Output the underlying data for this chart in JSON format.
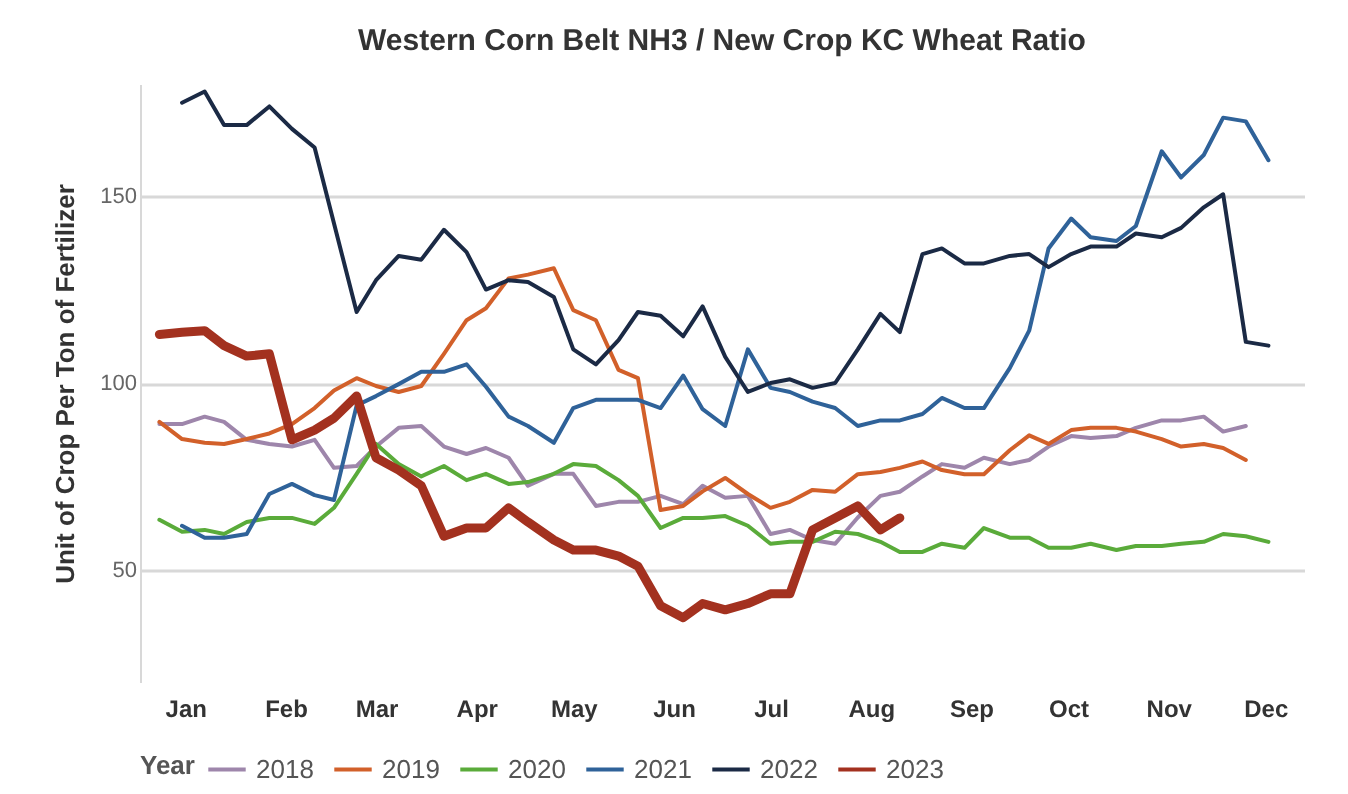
{
  "chart_data": {
    "type": "line",
    "title": "Western Corn Belt NH3 / New Crop KC Wheat Ratio",
    "ylabel": "Unit of Crop Per Ton of Fertilizer",
    "legend_title": "Year",
    "legend": "bottom",
    "grid": "y",
    "line_style": "solid",
    "xlim": [
      "--01-01",
      "--12-27"
    ],
    "ylim": [
      20,
      180
    ],
    "yticks": [
      50,
      100,
      150
    ],
    "xticks": [
      {
        "value": "--01-15",
        "label": "Jan"
      },
      {
        "value": "--02-15",
        "label": "Feb"
      },
      {
        "value": "--03-15",
        "label": "Mar"
      },
      {
        "value": "--04-15",
        "label": "Apr"
      },
      {
        "value": "--05-15",
        "label": "May"
      },
      {
        "value": "--06-15",
        "label": "Jun"
      },
      {
        "value": "--07-15",
        "label": "Jul"
      },
      {
        "value": "--08-15",
        "label": "Aug"
      },
      {
        "value": "--09-15",
        "label": "Sep"
      },
      {
        "value": "--10-15",
        "label": "Oct"
      },
      {
        "value": "--11-15",
        "label": "Nov"
      },
      {
        "value": "--12-15",
        "label": "Dec"
      }
    ],
    "x": [
      "--01-07",
      "--01-14",
      "--01-21",
      "--01-27",
      "--02-03",
      "--02-10",
      "--02-17",
      "--02-24",
      "--03-02",
      "--03-09",
      "--03-15",
      "--03-22",
      "--03-29",
      "--04-05",
      "--04-12",
      "--04-18",
      "--04-25",
      "--05-01",
      "--05-09",
      "--05-15",
      "--05-22",
      "--05-29",
      "--06-04",
      "--06-11",
      "--06-18",
      "--06-24",
      "--07-01",
      "--07-08",
      "--07-15",
      "--07-21",
      "--07-28",
      "--08-04",
      "--08-11",
      "--08-18",
      "--08-24",
      "--08-31",
      "--09-06",
      "--09-13",
      "--09-19",
      "--09-27",
      "--10-03",
      "--10-09",
      "--10-16",
      "--10-22",
      "--10-30",
      "--11-05",
      "--11-13",
      "--11-19",
      "--11-26",
      "--12-02",
      "--12-09",
      "--12-16"
    ],
    "series": [
      {
        "name": "2018",
        "color": "#9e86ab",
        "x": [
          "--01-07",
          "--01-14",
          "--01-21",
          "--01-27",
          "--02-03",
          "--02-10",
          "--02-17",
          "--02-24",
          "--03-02",
          "--03-09",
          "--03-15",
          "--03-22",
          "--03-29",
          "--04-05",
          "--04-12",
          "--04-18",
          "--04-25",
          "--05-01",
          "--05-09",
          "--05-15",
          "--05-22",
          "--05-29",
          "--06-04",
          "--06-11",
          "--06-18",
          "--06-24",
          "--07-01",
          "--07-08",
          "--07-15",
          "--07-21",
          "--07-28",
          "--08-04",
          "--08-11",
          "--08-18",
          "--08-24",
          "--08-31",
          "--09-06",
          "--09-13",
          "--09-19",
          "--09-27",
          "--10-03",
          "--10-09",
          "--10-16",
          "--10-22",
          "--10-30",
          "--11-05",
          "--11-13",
          "--11-19",
          "--11-26",
          "--12-02",
          "--12-09"
        ],
        "values": [
          89,
          89,
          91,
          89.6,
          84.8,
          83.7,
          83,
          84.8,
          77.3,
          77.8,
          83,
          88,
          88.5,
          83,
          81,
          82.6,
          80,
          72.5,
          75.7,
          75.7,
          67.1,
          68.2,
          68.2,
          69.8,
          67.6,
          72.5,
          69.3,
          69.8,
          59.6,
          60.7,
          58,
          57,
          64,
          69.8,
          70.9,
          75,
          78.3,
          77.3,
          80,
          78.3,
          79.4,
          83,
          85.8,
          85.3,
          85.8,
          88,
          90,
          90,
          91,
          87,
          88.5
        ]
      },
      {
        "name": "2019",
        "color": "#d2602a",
        "x": [
          "--01-07",
          "--01-14",
          "--01-21",
          "--01-27",
          "--02-03",
          "--02-10",
          "--02-17",
          "--02-24",
          "--03-02",
          "--03-09",
          "--03-15",
          "--03-22",
          "--03-29",
          "--04-05",
          "--04-12",
          "--04-18",
          "--04-25",
          "--05-01",
          "--05-09",
          "--05-15",
          "--05-22",
          "--05-29",
          "--06-04",
          "--06-11",
          "--06-18",
          "--06-24",
          "--07-01",
          "--07-08",
          "--07-15",
          "--07-21",
          "--07-28",
          "--08-04",
          "--08-11",
          "--08-18",
          "--08-24",
          "--08-31",
          "--09-06",
          "--09-13",
          "--09-19",
          "--09-27",
          "--10-03",
          "--10-09",
          "--10-16",
          "--10-22",
          "--10-30",
          "--11-05",
          "--11-13",
          "--11-19",
          "--11-26",
          "--12-02",
          "--12-09"
        ],
        "values": [
          89.6,
          85,
          84,
          83.7,
          85,
          86.5,
          89,
          93.3,
          98,
          101.3,
          99.2,
          97.6,
          99.2,
          107.8,
          116.8,
          120,
          128,
          129,
          130.7,
          119.5,
          116.8,
          103.5,
          101.3,
          66,
          67.1,
          71,
          74.6,
          70.3,
          66.6,
          68.2,
          71.4,
          70.9,
          75.6,
          76.2,
          77.3,
          79,
          76.7,
          75.6,
          75.6,
          82,
          86,
          83.7,
          87.4,
          88,
          88,
          87,
          85,
          83,
          83.7,
          82.6,
          79.4
        ]
      },
      {
        "name": "2020",
        "color": "#5aab3a",
        "values": [
          63.4,
          60.2,
          60.7,
          59.6,
          62.8,
          63.9,
          63.9,
          62.3,
          66.6,
          75.7,
          83.7,
          78.3,
          75,
          77.8,
          74,
          75.7,
          73,
          73.5,
          75.7,
          78.3,
          77.8,
          74,
          69.8,
          61.2,
          63.9,
          63.9,
          64.4,
          61.8,
          57,
          57.5,
          57.5,
          60.2,
          59.6,
          57.5,
          54.8,
          54.8,
          57,
          55.9,
          61.2,
          58.6,
          58.6,
          55.9,
          55.9,
          57,
          55.3,
          56.4,
          56.4,
          57,
          57.5,
          59.6,
          59,
          57.5
        ]
      },
      {
        "name": "2021",
        "color": "#2f6299",
        "x": [
          "--01-14",
          "--01-21",
          "--01-27",
          "--02-03",
          "--02-10",
          "--02-17",
          "--02-24",
          "--03-02",
          "--03-09",
          "--03-15",
          "--03-22",
          "--03-29",
          "--04-05",
          "--04-12",
          "--04-18",
          "--04-25",
          "--05-01",
          "--05-09",
          "--05-15",
          "--05-22",
          "--05-29",
          "--06-04",
          "--06-11",
          "--06-18",
          "--06-24",
          "--07-01",
          "--07-08",
          "--07-15",
          "--07-21",
          "--07-28",
          "--08-04",
          "--08-11",
          "--08-18",
          "--08-24",
          "--08-31",
          "--09-06",
          "--09-13",
          "--09-19",
          "--09-27",
          "--10-03",
          "--10-09",
          "--10-16",
          "--10-22",
          "--10-30",
          "--11-05",
          "--11-13",
          "--11-19",
          "--11-26",
          "--12-02",
          "--12-09",
          "--12-16"
        ],
        "values": [
          61.8,
          58.6,
          58.6,
          59.6,
          70.3,
          73,
          70,
          68.7,
          94,
          96.5,
          99.7,
          103,
          103,
          105,
          99,
          91,
          88.5,
          84,
          93.3,
          95.5,
          95.5,
          95.5,
          93.3,
          102,
          93,
          88.5,
          109,
          98.7,
          97.6,
          95,
          93.3,
          88.5,
          90,
          90,
          91.7,
          96,
          93.3,
          93.3,
          104,
          114,
          136,
          144,
          139,
          138,
          142,
          162,
          155,
          161,
          171,
          170,
          159.6
        ]
      },
      {
        "name": "2022",
        "color": "#1b2a45",
        "x": [
          "--01-14",
          "--01-21",
          "--01-27",
          "--02-03",
          "--02-10",
          "--02-17",
          "--02-24",
          "--03-09",
          "--03-15",
          "--03-22",
          "--03-29",
          "--04-05",
          "--04-12",
          "--04-18",
          "--04-25",
          "--05-01",
          "--05-09",
          "--05-15",
          "--05-22",
          "--05-29",
          "--06-04",
          "--06-11",
          "--06-18",
          "--06-24",
          "--07-01",
          "--07-08",
          "--07-15",
          "--07-21",
          "--07-28",
          "--08-04",
          "--08-11",
          "--08-18",
          "--08-24",
          "--08-31",
          "--09-06",
          "--09-13",
          "--09-19",
          "--09-27",
          "--10-03",
          "--10-09",
          "--10-16",
          "--10-22",
          "--10-30",
          "--11-05",
          "--11-13",
          "--11-19",
          "--11-26",
          "--12-02",
          "--12-09",
          "--12-16"
        ],
        "values": [
          175,
          178,
          169,
          169,
          174,
          168,
          163,
          119,
          127.5,
          134,
          133,
          141,
          135,
          125,
          127.5,
          127,
          123,
          109,
          105,
          111.5,
          119,
          118,
          112.5,
          120.5,
          107,
          97.6,
          100,
          101,
          98.7,
          100,
          109,
          118.5,
          113.6,
          134.5,
          136,
          132,
          132,
          134,
          134.5,
          131,
          134.5,
          136.5,
          136.5,
          140,
          139,
          141.5,
          147,
          150.5,
          111,
          110
        ]
      },
      {
        "name": "2023",
        "color": "#a3311f",
        "x": [
          "--01-07",
          "--01-14",
          "--01-21",
          "--01-27",
          "--02-03",
          "--02-10",
          "--02-17",
          "--02-24",
          "--03-02",
          "--03-09",
          "--03-15",
          "--03-22",
          "--03-29",
          "--04-05",
          "--04-12",
          "--04-18",
          "--04-25",
          "--05-01",
          "--05-09",
          "--05-15",
          "--05-22",
          "--05-29",
          "--06-04",
          "--06-11",
          "--06-18",
          "--06-24",
          "--07-01",
          "--07-08",
          "--07-15",
          "--07-21",
          "--07-28",
          "--08-04",
          "--08-11",
          "--08-18",
          "--08-24"
        ],
        "values": [
          113,
          113.6,
          114,
          110,
          107.2,
          107.8,
          84.8,
          87.4,
          90.6,
          96.5,
          80,
          76.7,
          72.5,
          59,
          61.2,
          61.2,
          66.6,
          62.8,
          58,
          55.3,
          55.3,
          53.7,
          51,
          40.4,
          37.2,
          41,
          39.3,
          41,
          43.6,
          43.6,
          60.7,
          63.9,
          67.1,
          60.7,
          63.9
        ]
      }
    ]
  }
}
